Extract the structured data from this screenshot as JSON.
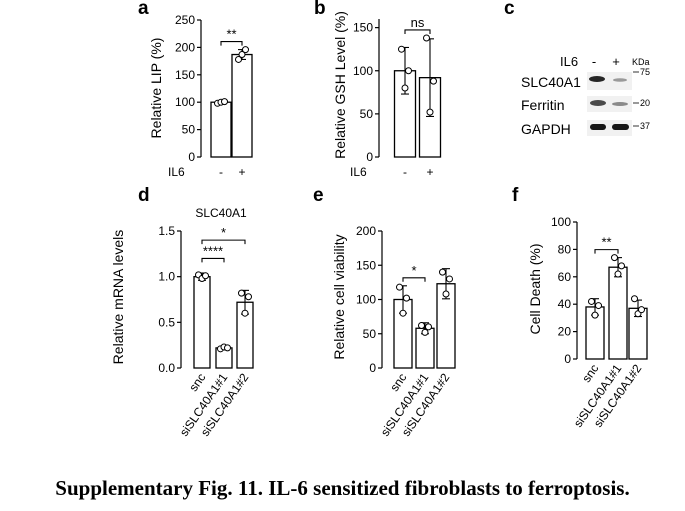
{
  "caption": "Supplementary Fig. 11. IL-6 sensitized fibroblasts to ferroptosis.",
  "chart_data": [
    {
      "panel": "a",
      "type": "bar",
      "ylabel": "Relative LIP (%)",
      "ylim": [
        0,
        250
      ],
      "yticks": [
        "0",
        "50",
        "100",
        "150",
        "200",
        "250"
      ],
      "group_label": "IL6",
      "categories": [
        "-",
        "+"
      ],
      "values": [
        100,
        187
      ],
      "errors": [
        2,
        9
      ],
      "points": [
        [
          98,
          100,
          101
        ],
        [
          178,
          187,
          196
        ]
      ],
      "significance": [
        {
          "from": 0,
          "to": 1,
          "label": "**"
        }
      ]
    },
    {
      "panel": "b",
      "type": "bar",
      "ylabel": "Relative GSH Level (%)",
      "ylim": [
        0,
        160
      ],
      "yticks": [
        "0",
        "50",
        "100",
        "150"
      ],
      "group_label": "IL6",
      "categories": [
        "-",
        "+"
      ],
      "values": [
        100,
        92
      ],
      "errors": [
        27,
        45
      ],
      "points": [
        [
          125,
          80,
          100
        ],
        [
          138,
          52,
          88
        ]
      ],
      "significance": [
        {
          "from": 0,
          "to": 1,
          "label": "ns"
        }
      ]
    },
    {
      "panel": "d",
      "type": "bar",
      "title": "SLC40A1",
      "ylabel": "Relative mRNA levels",
      "ylim": [
        0,
        1.5
      ],
      "yticks": [
        "0.0",
        "0.5",
        "1.0",
        "1.5"
      ],
      "categories": [
        "snc",
        "siSLC40A1#1",
        "siSLC40A1#2"
      ],
      "values": [
        1.0,
        0.22,
        0.72
      ],
      "errors": [
        0.04,
        0.02,
        0.13
      ],
      "points": [
        [
          1.02,
          0.98,
          1.01
        ],
        [
          0.21,
          0.23,
          0.22
        ],
        [
          0.82,
          0.6,
          0.78
        ]
      ],
      "significance": [
        {
          "from": 0,
          "to": 1,
          "label": "****"
        },
        {
          "from": 0,
          "to": 2,
          "label": "*"
        }
      ]
    },
    {
      "panel": "e",
      "type": "bar",
      "ylabel": "Relative cell viability",
      "ylim": [
        0,
        200
      ],
      "yticks": [
        "0",
        "50",
        "100",
        "150",
        "200"
      ],
      "categories": [
        "snc",
        "siSLC40A1#1",
        "siSLC40A1#2"
      ],
      "values": [
        100,
        58,
        123
      ],
      "errors": [
        20,
        8,
        22
      ],
      "points": [
        [
          118,
          80,
          102
        ],
        [
          62,
          52,
          60
        ],
        [
          140,
          108,
          130
        ]
      ],
      "significance": [
        {
          "from": 0,
          "to": 1,
          "label": "*"
        }
      ]
    },
    {
      "panel": "f",
      "type": "bar",
      "ylabel": "Cell Death (%)",
      "ylim": [
        0,
        100
      ],
      "yticks": [
        "0",
        "20",
        "40",
        "60",
        "80",
        "100"
      ],
      "categories": [
        "snc",
        "siSLC40A1#1",
        "siSLC40A1#2"
      ],
      "values": [
        38,
        67,
        37
      ],
      "errors": [
        6,
        7,
        6
      ],
      "points": [
        [
          42,
          32,
          39
        ],
        [
          74,
          62,
          68
        ],
        [
          44,
          33,
          36
        ]
      ],
      "significance": [
        {
          "from": 0,
          "to": 1,
          "label": "**"
        }
      ]
    }
  ],
  "western": {
    "panel": "c",
    "treatment_label": "IL6",
    "lanes": [
      "-",
      "+"
    ],
    "unit": "KDa",
    "rows": [
      {
        "name": "SLC40A1",
        "marker": "75"
      },
      {
        "name": "Ferritin",
        "marker": "20"
      },
      {
        "name": "GAPDH",
        "marker": "37"
      }
    ]
  }
}
